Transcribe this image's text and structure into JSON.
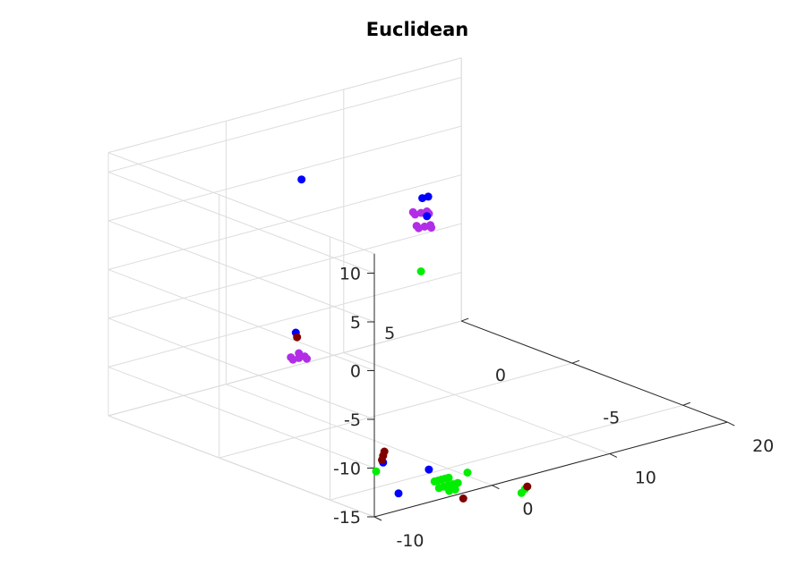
{
  "chart_data": {
    "type": "scatter",
    "title": "Euclidean",
    "xlabel": "",
    "ylabel": "",
    "zlabel": "",
    "x_ticks": [
      "-10",
      "0",
      "10",
      "20"
    ],
    "y_ticks": [
      "-5",
      "0",
      "5"
    ],
    "z_ticks": [
      "-15",
      "-10",
      "-5",
      "0",
      "5",
      "10"
    ],
    "xlim": [
      -10,
      20
    ],
    "ylim": [
      -7,
      5
    ],
    "zlim": [
      -15,
      12
    ],
    "grid": true,
    "view": "3d",
    "colors": {
      "blue": "#0000ff",
      "purple": "#b22ee6",
      "green": "#00ee00",
      "dark_red": "#800000"
    },
    "series": [
      {
        "color": "#b22ee6",
        "points": [
          [
            1,
            -3,
            9
          ],
          [
            1.5,
            -3,
            9
          ],
          [
            2,
            -3,
            9
          ],
          [
            1.2,
            -2.8,
            9
          ],
          [
            1.8,
            -3.2,
            9
          ],
          [
            1.3,
            -3,
            7.5
          ],
          [
            1.8,
            -3,
            7.5
          ],
          [
            2.3,
            -3,
            7.5
          ],
          [
            1.5,
            -2.8,
            7.5
          ],
          [
            2,
            -3.2,
            7.5
          ],
          [
            -7.5,
            -2,
            -4
          ],
          [
            -7,
            -2,
            -4
          ],
          [
            -6.5,
            -2,
            -4
          ],
          [
            -7.3,
            -1.8,
            -4
          ],
          [
            -6.7,
            -2.2,
            -4
          ],
          [
            -7,
            -2,
            -3.5
          ]
        ]
      },
      {
        "color": "#0000ff",
        "points": [
          [
            -3,
            0,
            11.3
          ],
          [
            3.5,
            -2,
            9
          ],
          [
            4,
            -2,
            9
          ],
          [
            2,
            -3,
            8.5
          ],
          [
            -6.5,
            -1.6,
            -1.9
          ],
          [
            -3.6,
            -4,
            -14.1
          ],
          [
            -1.6,
            -5,
            -14.6
          ],
          [
            -7,
            -6.5,
            -14
          ]
        ]
      },
      {
        "color": "#00ee00",
        "points": [
          [
            1.5,
            -3,
            3
          ],
          [
            -4.2,
            -4,
            -14.8
          ],
          [
            -3,
            -6,
            -14.5
          ],
          [
            -2.7,
            -6,
            -14.5
          ],
          [
            -2.4,
            -6,
            -14.5
          ],
          [
            -2.1,
            -6,
            -14.5
          ],
          [
            -1.8,
            -6,
            -14.5
          ],
          [
            -3,
            -6.2,
            -15
          ],
          [
            -2.6,
            -6.2,
            -15
          ],
          [
            -2.2,
            -6.2,
            -15
          ],
          [
            -1.8,
            -6.2,
            -15
          ],
          [
            -1.4,
            -6.2,
            -15
          ],
          [
            -2.5,
            -6.4,
            -15.3
          ],
          [
            -2,
            -6.4,
            -15.3
          ],
          [
            -0.2,
            -6,
            -14.5
          ],
          [
            2.8,
            -7,
            -16.3
          ],
          [
            2.5,
            -7,
            -16.6
          ]
        ]
      },
      {
        "color": "#800000",
        "points": [
          [
            -6.4,
            -1.6,
            -2.4
          ],
          [
            -3.5,
            -4,
            -13
          ],
          [
            -3.6,
            -4,
            -13.4
          ],
          [
            -3.7,
            -4,
            -13.8
          ],
          [
            3,
            -7,
            -16.1
          ],
          [
            -1.5,
            -6.5,
            -16.3
          ]
        ]
      }
    ]
  }
}
